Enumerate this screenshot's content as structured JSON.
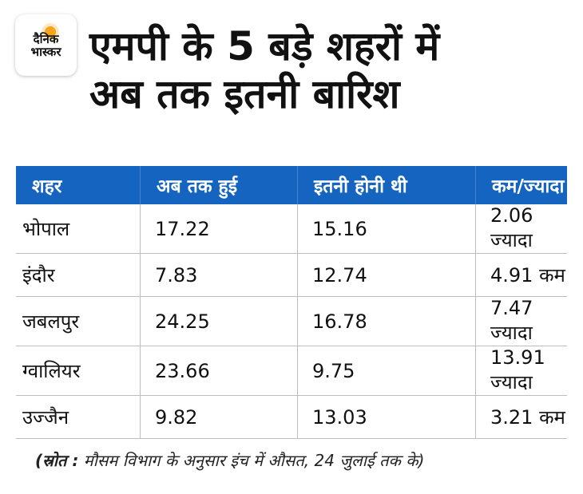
{
  "logo": {
    "line1": "दैनिक",
    "line2": "भास्कर"
  },
  "title": {
    "line1": "एमपी के 5 बड़े शहरों में",
    "line2": "अब तक इतनी बारिश"
  },
  "table": {
    "headers": [
      "शहर",
      "अब तक हुई",
      "इतनी होनी थी",
      "कम/ज्यादा"
    ],
    "rows": [
      [
        "भोपाल",
        "17.22",
        "15.16",
        "2.06 ज्यादा"
      ],
      [
        "इंदौर",
        "7.83",
        "12.74",
        "4.91 कम"
      ],
      [
        "जबलपुर",
        "24.25",
        "16.78",
        "7.47 ज्यादा"
      ],
      [
        "ग्वालियर",
        "23.66",
        "9.75",
        "13.91 ज्यादा"
      ],
      [
        "उज्जैन",
        "9.82",
        "13.03",
        "3.21 कम"
      ]
    ]
  },
  "source": {
    "label": "(स्रोत :",
    "text": " मौसम विभाग के अनुसार इंच में औसत, 24 जुलाई तक के)"
  },
  "colors": {
    "header_bg": "#1565c0",
    "logo_sun": "#f8a51b"
  }
}
